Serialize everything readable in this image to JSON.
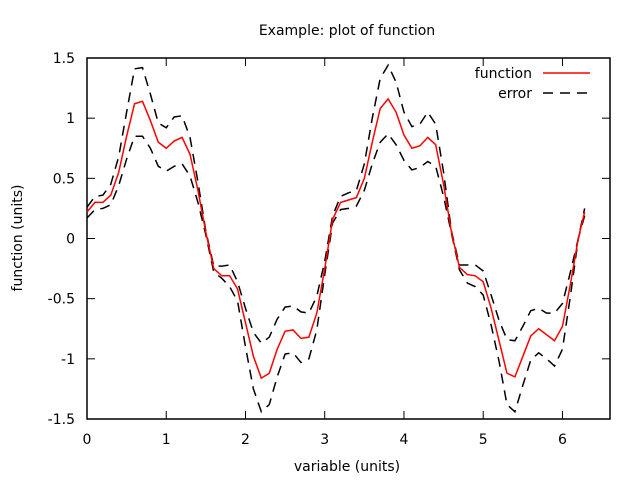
{
  "chart_data": {
    "type": "line",
    "title": "Example: plot of function",
    "xlabel": "variable (units)",
    "ylabel": "function (units)",
    "xlim": [
      0,
      6.6
    ],
    "ylim": [
      -1.5,
      1.5
    ],
    "xticks": [
      0,
      1,
      2,
      3,
      4,
      5,
      6
    ],
    "xtick_labels": [
      "0",
      "1",
      "2",
      "3",
      "4",
      "5",
      "6"
    ],
    "yticks": [
      -1.5,
      -1,
      -0.5,
      0,
      0.5,
      1,
      1.5
    ],
    "ytick_labels": [
      "-1.5",
      "-1",
      "-0.5",
      "0",
      "0.5",
      "1",
      "1.5"
    ],
    "grid": false,
    "legend_position": "top-right",
    "series": [
      {
        "name": "function",
        "color": "#ff0000",
        "style": "solid",
        "x": [
          0.0,
          0.1,
          0.2,
          0.3,
          0.4,
          0.5,
          0.6,
          0.7,
          0.8,
          0.9,
          1.0,
          1.1,
          1.2,
          1.3,
          1.4,
          1.5,
          1.6,
          1.7,
          1.8,
          1.9,
          2.0,
          2.1,
          2.2,
          2.3,
          2.4,
          2.5,
          2.6,
          2.7,
          2.8,
          2.9,
          3.0,
          3.1,
          3.2,
          3.3,
          3.4,
          3.5,
          3.6,
          3.7,
          3.8,
          3.9,
          4.0,
          4.1,
          4.2,
          4.3,
          4.4,
          4.5,
          4.6,
          4.7,
          4.8,
          4.9,
          5.0,
          5.1,
          5.2,
          5.3,
          5.4,
          5.5,
          5.6,
          5.7,
          5.8,
          5.9,
          6.0,
          6.1,
          6.2,
          6.28
        ],
        "y": [
          0.22,
          0.3,
          0.3,
          0.36,
          0.55,
          0.85,
          1.12,
          1.14,
          0.98,
          0.8,
          0.75,
          0.81,
          0.84,
          0.7,
          0.4,
          0.05,
          -0.25,
          -0.31,
          -0.31,
          -0.42,
          -0.7,
          -0.98,
          -1.16,
          -1.12,
          -0.92,
          -0.77,
          -0.76,
          -0.83,
          -0.82,
          -0.62,
          -0.25,
          0.16,
          0.3,
          0.32,
          0.34,
          0.5,
          0.8,
          1.08,
          1.16,
          1.05,
          0.86,
          0.75,
          0.77,
          0.84,
          0.78,
          0.45,
          0.05,
          -0.24,
          -0.3,
          -0.31,
          -0.36,
          -0.58,
          -0.85,
          -1.12,
          -1.15,
          -0.98,
          -0.81,
          -0.75,
          -0.8,
          -0.85,
          -0.73,
          -0.38,
          0.0,
          0.22
        ]
      },
      {
        "name": "error",
        "color": "#000000",
        "style": "dashed",
        "x": [
          0.0,
          0.1,
          0.2,
          0.3,
          0.4,
          0.5,
          0.6,
          0.7,
          0.8,
          0.9,
          1.0,
          1.1,
          1.2,
          1.3,
          1.4,
          1.5,
          1.6,
          1.7,
          1.8,
          1.9,
          2.0,
          2.1,
          2.2,
          2.3,
          2.4,
          2.5,
          2.6,
          2.7,
          2.8,
          2.9,
          3.0,
          3.1,
          3.2,
          3.3,
          3.4,
          3.5,
          3.6,
          3.7,
          3.8,
          3.9,
          4.0,
          4.1,
          4.2,
          4.3,
          4.4,
          4.5,
          4.6,
          4.7,
          4.8,
          4.9,
          5.0,
          5.1,
          5.2,
          5.3,
          5.4,
          5.5,
          5.6,
          5.7,
          5.8,
          5.9,
          6.0,
          6.1,
          6.2,
          6.28
        ],
        "y": [
          0.26,
          0.35,
          0.36,
          0.45,
          0.68,
          1.05,
          1.41,
          1.42,
          1.2,
          0.96,
          0.92,
          1.01,
          1.02,
          0.84,
          0.47,
          0.06,
          -0.23,
          -0.23,
          -0.22,
          -0.36,
          -0.58,
          -0.78,
          -0.87,
          -0.82,
          -0.67,
          -0.57,
          -0.56,
          -0.61,
          -0.62,
          -0.48,
          -0.19,
          0.19,
          0.35,
          0.38,
          0.4,
          0.62,
          1.0,
          1.33,
          1.44,
          1.3,
          1.05,
          0.93,
          0.95,
          1.05,
          0.95,
          0.55,
          0.06,
          -0.22,
          -0.22,
          -0.22,
          -0.27,
          -0.47,
          -0.68,
          -0.84,
          -0.85,
          -0.73,
          -0.6,
          -0.58,
          -0.62,
          -0.62,
          -0.54,
          -0.28,
          0.0,
          0.25
        ]
      },
      {
        "name": "",
        "color": "#000000",
        "style": "dashed",
        "x": [
          0.0,
          0.1,
          0.2,
          0.3,
          0.4,
          0.5,
          0.6,
          0.7,
          0.8,
          0.9,
          1.0,
          1.1,
          1.2,
          1.3,
          1.4,
          1.5,
          1.6,
          1.7,
          1.8,
          1.9,
          2.0,
          2.1,
          2.2,
          2.3,
          2.4,
          2.5,
          2.6,
          2.7,
          2.8,
          2.9,
          3.0,
          3.1,
          3.2,
          3.3,
          3.4,
          3.5,
          3.6,
          3.7,
          3.8,
          3.9,
          4.0,
          4.1,
          4.2,
          4.3,
          4.4,
          4.5,
          4.6,
          4.7,
          4.8,
          4.9,
          5.0,
          5.1,
          5.2,
          5.3,
          5.4,
          5.5,
          5.6,
          5.7,
          5.8,
          5.9,
          6.0,
          6.1,
          6.2,
          6.28
        ],
        "y": [
          0.17,
          0.24,
          0.25,
          0.28,
          0.44,
          0.66,
          0.85,
          0.85,
          0.75,
          0.6,
          0.56,
          0.6,
          0.62,
          0.52,
          0.3,
          0.03,
          -0.28,
          -0.33,
          -0.4,
          -0.52,
          -0.9,
          -1.25,
          -1.44,
          -1.38,
          -1.15,
          -0.96,
          -0.95,
          -1.03,
          -1.0,
          -0.76,
          -0.3,
          0.13,
          0.24,
          0.25,
          0.27,
          0.4,
          0.62,
          0.8,
          0.87,
          0.78,
          0.65,
          0.57,
          0.59,
          0.64,
          0.6,
          0.35,
          0.04,
          -0.26,
          -0.37,
          -0.4,
          -0.47,
          -0.72,
          -1.02,
          -1.38,
          -1.44,
          -1.22,
          -1.01,
          -0.95,
          -1.0,
          -1.06,
          -0.92,
          -0.48,
          0.0,
          0.19
        ]
      }
    ]
  }
}
